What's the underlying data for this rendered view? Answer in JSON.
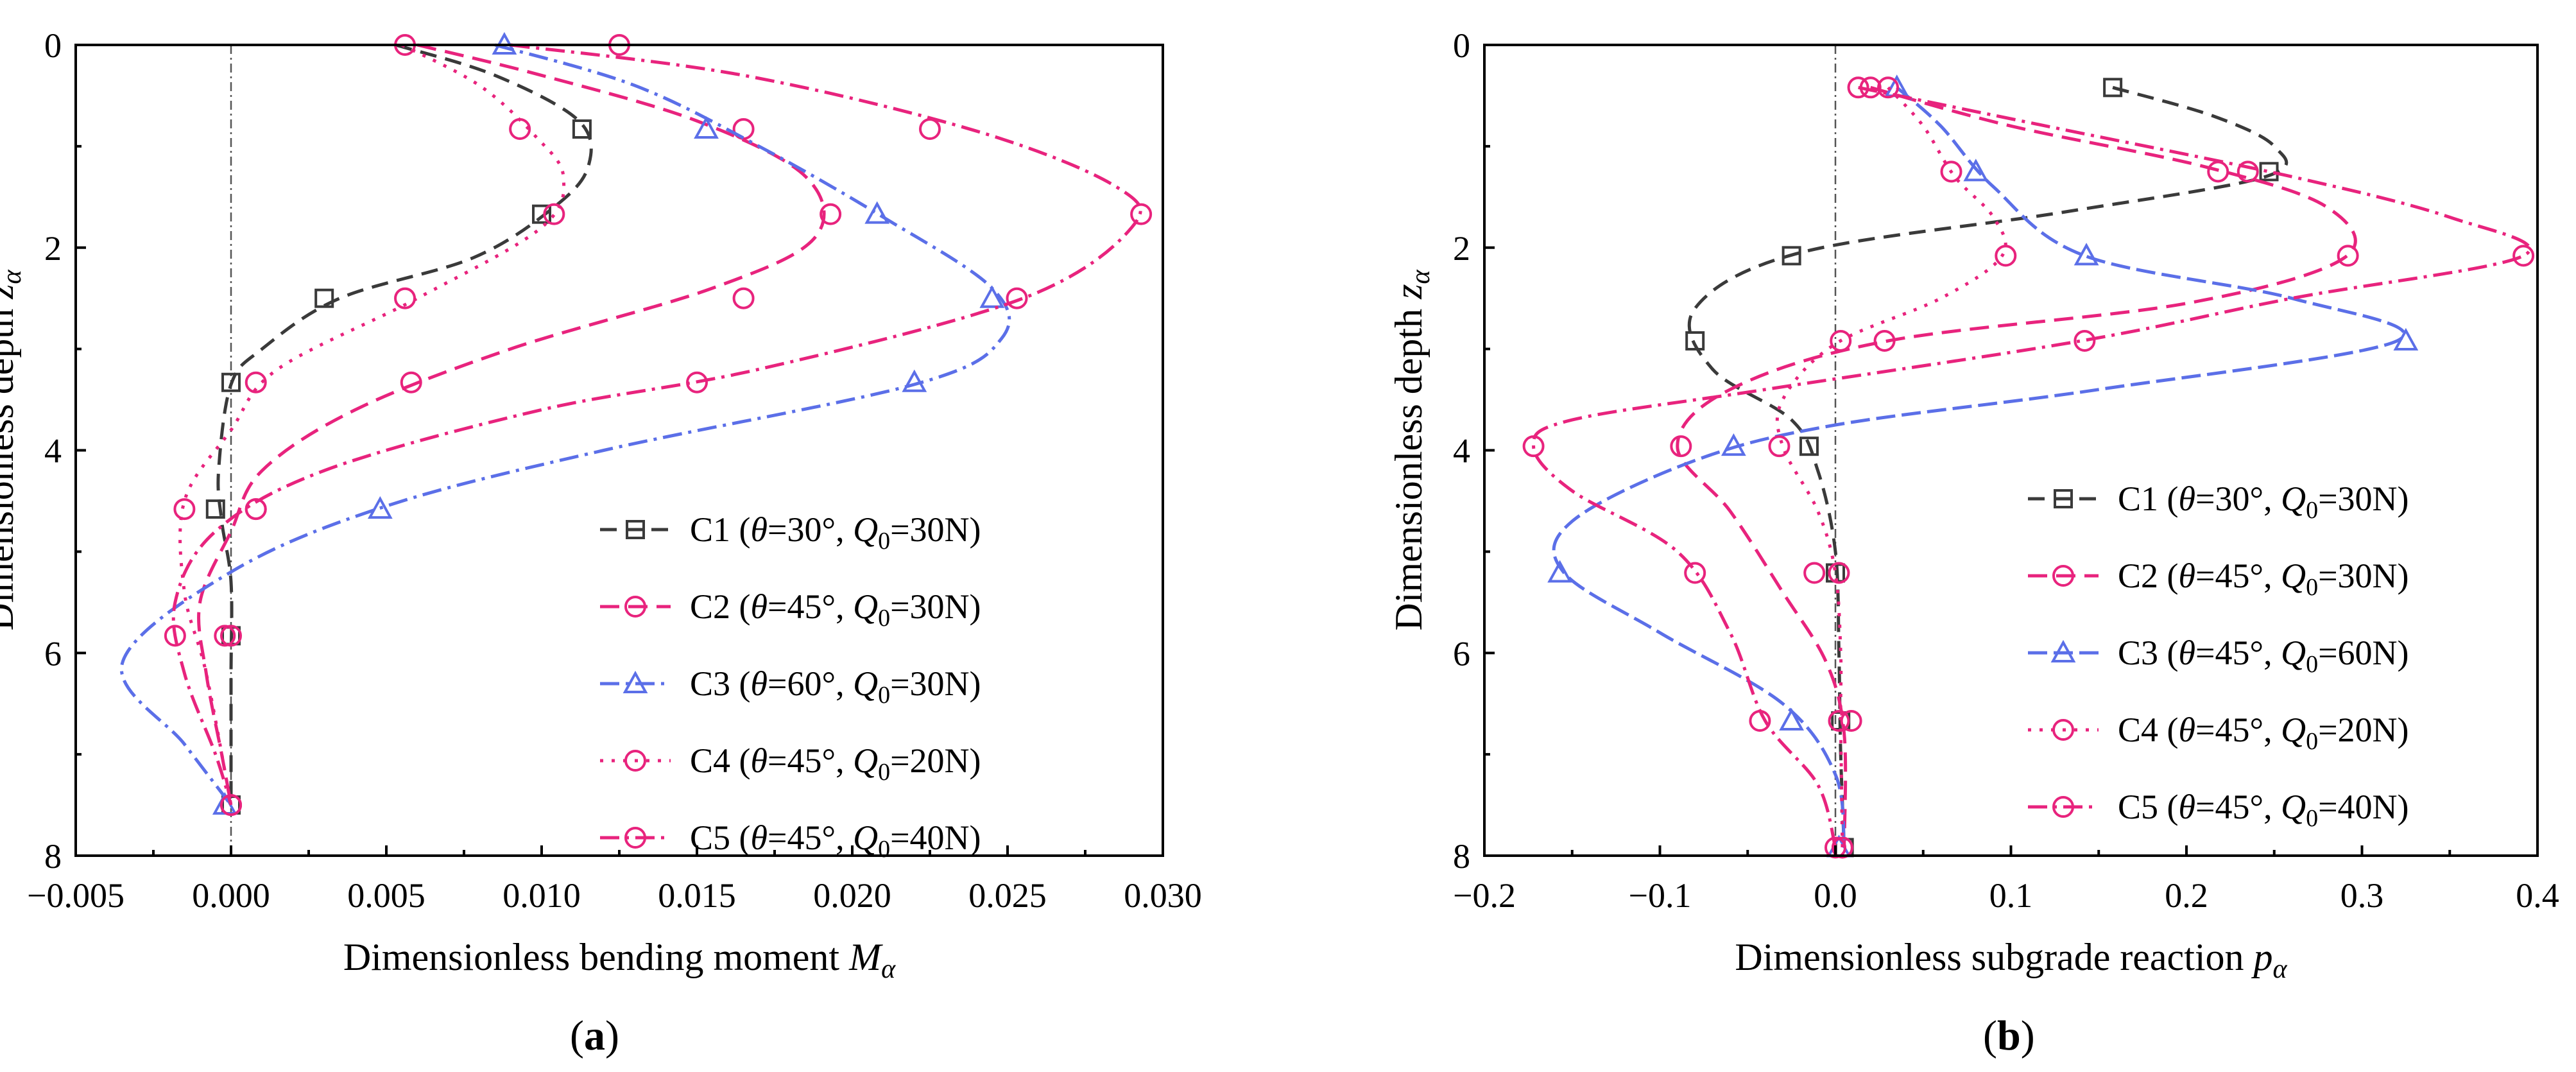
{
  "chart_data": [
    {
      "type": "line",
      "panel_label": "a",
      "xlabel": "Dimensionless bending moment ",
      "xlabel_sym": "M",
      "xlabel_sub": "α",
      "ylabel": "Dimensionless depth ",
      "ylabel_sym": "z",
      "ylabel_sub": "α",
      "xlim": [
        -0.005,
        0.03
      ],
      "ylim": [
        0,
        8
      ],
      "y_inverted": true,
      "xticks": [
        "−0.005",
        "0.000",
        "0.005",
        "0.010",
        "0.015",
        "0.020",
        "0.025",
        "0.030"
      ],
      "xtick_values": [
        -0.005,
        0,
        0.005,
        0.01,
        0.015,
        0.02,
        0.025,
        0.03
      ],
      "yticks": [
        "0",
        "2",
        "4",
        "6",
        "8"
      ],
      "ytick_values": [
        0,
        2,
        4,
        6,
        8
      ],
      "legend_position": "lower-right",
      "series": [
        {
          "name": "C1",
          "theta": "30°",
          "q0": "30N",
          "color": "#3a3a3a",
          "marker": "square",
          "dash": "26 14",
          "curve": [
            [
              0.0053,
              0
            ],
            [
              0.0085,
              0.3
            ],
            [
              0.0112,
              0.75
            ],
            [
              0.0115,
              1.2
            ],
            [
              0.0104,
              1.6
            ],
            [
              0.0078,
              2.1
            ],
            [
              0.0035,
              2.5
            ],
            [
              0.001,
              3.0
            ],
            [
              0.0,
              3.35
            ],
            [
              -0.0004,
              4.2
            ],
            [
              -0.0003,
              4.7
            ],
            [
              0.0,
              5.3
            ],
            [
              0.0,
              6.2
            ],
            [
              0.0,
              7.0
            ],
            [
              0.0,
              7.5
            ]
          ],
          "points": [
            [
              0.0113,
              0.83
            ],
            [
              0.01,
              1.67
            ],
            [
              0.003,
              2.5
            ],
            [
              0.0,
              3.33
            ],
            [
              -0.0005,
              4.58
            ],
            [
              0.0,
              5.83
            ],
            [
              0.0,
              7.5
            ]
          ]
        },
        {
          "name": "C2",
          "theta": "45°",
          "q0": "30N",
          "color": "#e8237d",
          "marker": "circle",
          "dash": "30 14",
          "curve": [
            [
              0.006,
              0
            ],
            [
              0.01,
              0.3
            ],
            [
              0.015,
              0.75
            ],
            [
              0.0185,
              1.3
            ],
            [
              0.0188,
              1.9
            ],
            [
              0.0155,
              2.4
            ],
            [
              0.009,
              3.0
            ],
            [
              0.004,
              3.6
            ],
            [
              0.001,
              4.2
            ],
            [
              0.0,
              4.8
            ],
            [
              -0.001,
              5.5
            ],
            [
              -0.0008,
              6.2
            ],
            [
              -0.0003,
              7.0
            ],
            [
              0.0,
              7.5
            ]
          ],
          "points": [
            [
              0.0165,
              0.83
            ],
            [
              0.0193,
              1.67
            ],
            [
              0.0165,
              2.5
            ],
            [
              0.0058,
              3.33
            ],
            [
              0.0008,
              4.58
            ],
            [
              -0.0002,
              5.83
            ],
            [
              0.0,
              7.5
            ]
          ]
        },
        {
          "name": "C3",
          "theta": "60°",
          "q0": "30N",
          "color": "#5b6fe8",
          "marker": "triangle",
          "dash": "30 10 5 10",
          "curve": [
            [
              0.0085,
              0
            ],
            [
              0.013,
              0.4
            ],
            [
              0.017,
              1.0
            ],
            [
              0.021,
              1.7
            ],
            [
              0.0245,
              2.4
            ],
            [
              0.0248,
              2.9
            ],
            [
              0.022,
              3.35
            ],
            [
              0.012,
              4.0
            ],
            [
              0.005,
              4.55
            ],
            [
              0.0,
              5.2
            ],
            [
              -0.0035,
              6.1
            ],
            [
              -0.0015,
              6.9
            ],
            [
              0.0,
              7.5
            ]
          ],
          "points": [
            [
              0.0088,
              0
            ],
            [
              0.0153,
              0.83
            ],
            [
              0.0208,
              1.67
            ],
            [
              0.0245,
              2.5
            ],
            [
              0.022,
              3.33
            ],
            [
              0.0048,
              4.58
            ],
            [
              -0.0002,
              7.5
            ]
          ]
        },
        {
          "name": "C4",
          "theta": "45°",
          "q0": "20N",
          "color": "#e8237d",
          "marker": "circle",
          "dash": "5 13",
          "curve": [
            [
              0.0055,
              0
            ],
            [
              0.008,
              0.4
            ],
            [
              0.0098,
              0.9
            ],
            [
              0.0107,
              1.3
            ],
            [
              0.01,
              1.8
            ],
            [
              0.006,
              2.5
            ],
            [
              0.0015,
              3.2
            ],
            [
              0.0,
              3.8
            ],
            [
              -0.0015,
              4.5
            ],
            [
              -0.0015,
              5.4
            ],
            [
              -0.0008,
              6.2
            ],
            [
              0.0,
              7.5
            ]
          ],
          "points": [
            [
              0.0056,
              0
            ],
            [
              0.0093,
              0.83
            ],
            [
              0.0104,
              1.67
            ],
            [
              0.0056,
              2.5
            ],
            [
              0.0008,
              3.33
            ],
            [
              -0.0015,
              4.58
            ],
            [
              0.0,
              5.83
            ],
            [
              0.0,
              7.5
            ]
          ]
        },
        {
          "name": "C5",
          "theta": "45°",
          "q0": "40N",
          "color": "#e8237d",
          "marker": "circle",
          "dash": "30 10 5 10",
          "curve": [
            [
              0.009,
              0
            ],
            [
              0.0165,
              0.3
            ],
            [
              0.024,
              0.85
            ],
            [
              0.0285,
              1.4
            ],
            [
              0.029,
              1.8
            ],
            [
              0.0255,
              2.5
            ],
            [
              0.017,
              3.2
            ],
            [
              0.01,
              3.6
            ],
            [
              0.003,
              4.2
            ],
            [
              -0.0005,
              4.8
            ],
            [
              -0.0018,
              5.5
            ],
            [
              -0.0015,
              6.2
            ],
            [
              -0.0005,
              7.0
            ],
            [
              0.0,
              7.5
            ]
          ],
          "points": [
            [
              0.0125,
              0
            ],
            [
              0.0225,
              0.83
            ],
            [
              0.0293,
              1.67
            ],
            [
              0.0253,
              2.5
            ],
            [
              0.015,
              3.33
            ],
            [
              0.0008,
              4.58
            ],
            [
              -0.0018,
              5.83
            ],
            [
              0.0,
              7.5
            ]
          ]
        }
      ]
    },
    {
      "type": "line",
      "panel_label": "b",
      "xlabel": "Dimensionless subgrade reaction ",
      "xlabel_sym": "p",
      "xlabel_sub": "α",
      "ylabel": "Dimensionless depth ",
      "ylabel_sym": "z",
      "ylabel_sub": "α",
      "xlim": [
        -0.2,
        0.4
      ],
      "ylim": [
        0,
        8
      ],
      "y_inverted": true,
      "xticks": [
        "−0.2",
        "−0.1",
        "0.0",
        "0.1",
        "0.2",
        "0.3",
        "0.4"
      ],
      "xtick_values": [
        -0.2,
        -0.1,
        0,
        0.1,
        0.2,
        0.3,
        0.4
      ],
      "yticks": [
        "0",
        "2",
        "4",
        "6",
        "8"
      ],
      "ytick_values": [
        0,
        2,
        4,
        6,
        8
      ],
      "legend_position": "right",
      "series": [
        {
          "name": "C1",
          "theta": "30°",
          "q0": "30N",
          "color": "#3a3a3a",
          "marker": "square",
          "dash": "26 14",
          "curve": [
            [
              0.158,
              0.42
            ],
            [
              0.215,
              0.7
            ],
            [
              0.25,
              1.0
            ],
            [
              0.245,
              1.3
            ],
            [
              0.13,
              1.65
            ],
            [
              -0.02,
              2.05
            ],
            [
              -0.08,
              2.6
            ],
            [
              -0.07,
              3.2
            ],
            [
              -0.025,
              3.7
            ],
            [
              -0.01,
              4.2
            ],
            [
              0.0,
              5.0
            ],
            [
              0.002,
              6.0
            ],
            [
              0.003,
              7.0
            ],
            [
              0.005,
              7.92
            ]
          ],
          "points": [
            [
              0.158,
              0.42
            ],
            [
              0.247,
              1.25
            ],
            [
              -0.025,
              2.08
            ],
            [
              -0.08,
              2.92
            ],
            [
              -0.015,
              3.96
            ],
            [
              0.0,
              5.21
            ],
            [
              0.003,
              6.67
            ],
            [
              0.005,
              7.92
            ]
          ]
        },
        {
          "name": "C2",
          "theta": "45°",
          "q0": "30N",
          "color": "#e8237d",
          "marker": "circle",
          "dash": "30 14",
          "curve": [
            [
              0.02,
              0.42
            ],
            [
              0.1,
              0.8
            ],
            [
              0.21,
              1.2
            ],
            [
              0.28,
              1.6
            ],
            [
              0.29,
              2.1
            ],
            [
              0.2,
              2.55
            ],
            [
              0.03,
              2.92
            ],
            [
              -0.06,
              3.4
            ],
            [
              -0.09,
              3.96
            ],
            [
              -0.06,
              4.6
            ],
            [
              -0.03,
              5.4
            ],
            [
              -0.005,
              6.1
            ],
            [
              0.005,
              6.8
            ],
            [
              0.005,
              7.92
            ]
          ],
          "points": [
            [
              0.02,
              0.42
            ],
            [
              0.218,
              1.25
            ],
            [
              0.292,
              2.08
            ],
            [
              0.028,
              2.92
            ],
            [
              -0.088,
              3.96
            ],
            [
              -0.012,
              5.21
            ],
            [
              0.009,
              6.67
            ],
            [
              0.004,
              7.92
            ]
          ]
        },
        {
          "name": "C3",
          "theta": "45°",
          "q0": "60N",
          "color": "#5b6fe8",
          "marker": "triangle",
          "dash": "30 10",
          "curve": [
            [
              0.035,
              0.42
            ],
            [
              0.06,
              0.8
            ],
            [
              0.09,
              1.4
            ],
            [
              0.142,
              2.08
            ],
            [
              0.26,
              2.5
            ],
            [
              0.32,
              2.92
            ],
            [
              0.15,
              3.4
            ],
            [
              0.0,
              3.75
            ],
            [
              -0.08,
              4.1
            ],
            [
              -0.15,
              4.7
            ],
            [
              -0.155,
              5.2
            ],
            [
              -0.1,
              5.8
            ],
            [
              -0.03,
              6.5
            ],
            [
              0.0,
              7.2
            ],
            [
              0.005,
              7.92
            ]
          ],
          "points": [
            [
              0.035,
              0.42
            ],
            [
              0.08,
              1.25
            ],
            [
              0.143,
              2.08
            ],
            [
              0.325,
              2.92
            ],
            [
              -0.058,
              3.96
            ],
            [
              -0.157,
              5.21
            ],
            [
              -0.025,
              6.67
            ],
            [
              0.002,
              7.92
            ]
          ]
        },
        {
          "name": "C4",
          "theta": "45°",
          "q0": "20N",
          "color": "#e8237d",
          "marker": "circle",
          "dash": "5 13",
          "curve": [
            [
              0.03,
              0.42
            ],
            [
              0.05,
              0.8
            ],
            [
              0.068,
              1.3
            ],
            [
              0.09,
              1.7
            ],
            [
              0.095,
              2.08
            ],
            [
              0.06,
              2.5
            ],
            [
              0.0,
              2.95
            ],
            [
              -0.03,
              3.5
            ],
            [
              -0.03,
              3.96
            ],
            [
              -0.01,
              4.6
            ],
            [
              0.0,
              5.21
            ],
            [
              0.003,
              6.0
            ],
            [
              0.003,
              6.67
            ],
            [
              0.004,
              7.92
            ]
          ],
          "points": [
            [
              0.03,
              0.42
            ],
            [
              0.066,
              1.25
            ],
            [
              0.097,
              2.08
            ],
            [
              0.003,
              2.92
            ],
            [
              -0.032,
              3.96
            ],
            [
              0.002,
              5.21
            ],
            [
              0.002,
              6.67
            ],
            [
              0.004,
              7.92
            ]
          ]
        },
        {
          "name": "C5",
          "theta": "45°",
          "q0": "40N",
          "color": "#e8237d",
          "marker": "circle",
          "dash": "30 10 5 10",
          "curve": [
            [
              0.013,
              0.42
            ],
            [
              0.12,
              0.8
            ],
            [
              0.26,
              1.3
            ],
            [
              0.35,
              1.7
            ],
            [
              0.392,
              2.08
            ],
            [
              0.26,
              2.5
            ],
            [
              0.14,
              2.92
            ],
            [
              -0.04,
              3.4
            ],
            [
              -0.15,
              3.7
            ],
            [
              -0.172,
              3.96
            ],
            [
              -0.15,
              4.4
            ],
            [
              -0.09,
              5.0
            ],
            [
              -0.06,
              5.8
            ],
            [
              -0.04,
              6.67
            ],
            [
              -0.01,
              7.3
            ],
            [
              0.0,
              7.92
            ]
          ],
          "points": [
            [
              0.013,
              0.42
            ],
            [
              0.235,
              1.25
            ],
            [
              0.392,
              2.08
            ],
            [
              0.142,
              2.92
            ],
            [
              -0.172,
              3.96
            ],
            [
              -0.08,
              5.21
            ],
            [
              -0.043,
              6.67
            ],
            [
              0.0,
              7.92
            ]
          ]
        }
      ]
    }
  ]
}
